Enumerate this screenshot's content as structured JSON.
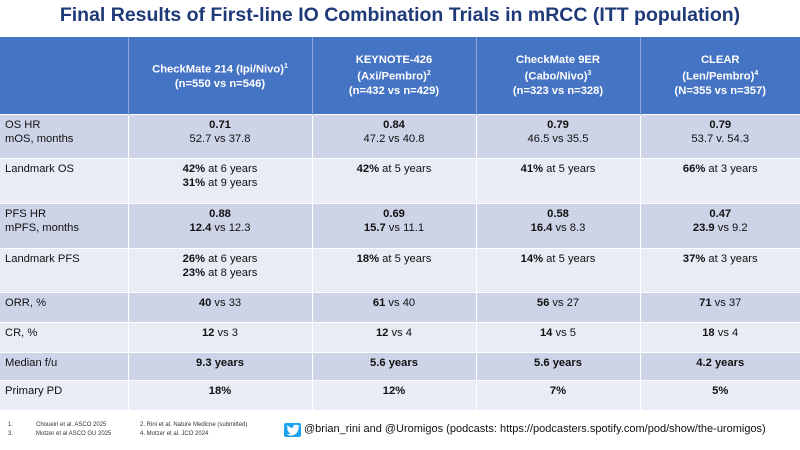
{
  "title": "Final Results of First-line IO Combination Trials in mRCC (ITT population)",
  "columns": [
    {
      "name": "CheckMate 214 (Ipi/Nivo)",
      "sup": "1",
      "n": "(n=550 vs n=546)"
    },
    {
      "name": "KEYNOTE-426",
      "name2": "(Axi/Pembro)",
      "sup": "2",
      "n": "(n=432 vs n=429)"
    },
    {
      "name": "CheckMate 9ER",
      "name2": "(Cabo/Nivo)",
      "sup": "3",
      "n": "(n=323 vs n=328)"
    },
    {
      "name": "CLEAR",
      "name2": "(Len/Pembro)",
      "sup": "4",
      "n": "(N=355 vs n=357)"
    }
  ],
  "rows": {
    "os": {
      "label1": "OS HR",
      "label2": "mOS, months",
      "cells": [
        {
          "hr": "0.71",
          "m": "52.7 vs 37.8"
        },
        {
          "hr": "0.84",
          "m": "47.2 vs 40.8"
        },
        {
          "hr": "0.79",
          "m": "46.5 vs 35.5"
        },
        {
          "hr": "0.79",
          "m": "53.7 v. 54.3"
        }
      ]
    },
    "landmark_os": {
      "label": "Landmark OS",
      "cells": [
        {
          "b1": "42%",
          "t1": " at 6 years",
          "b2": "31%",
          "t2": " at 9 years"
        },
        {
          "b1": "42%",
          "t1": " at 5 years"
        },
        {
          "b1": "41%",
          "t1": " at 5 years"
        },
        {
          "b1": "66%",
          "t1": " at 3 years"
        }
      ]
    },
    "pfs": {
      "label1": "PFS HR",
      "label2": "mPFS, months",
      "cells": [
        {
          "hr": "0.88",
          "mb": "12.4",
          "mt": " vs 12.3"
        },
        {
          "hr": "0.69",
          "mb": "15.7",
          "mt": " vs 11.1"
        },
        {
          "hr": "0.58",
          "mb": "16.4",
          "mt": " vs 8.3"
        },
        {
          "hr": "0.47",
          "mb": "23.9",
          "mt": " vs 9.2"
        }
      ]
    },
    "landmark_pfs": {
      "label": "Landmark PFS",
      "cells": [
        {
          "b1": "26%",
          "t1": " at 6 years",
          "b2": "23%",
          "t2": " at 8 years"
        },
        {
          "b1": "18%",
          "t1": " at 5 years"
        },
        {
          "b1": "14%",
          "t1": " at 5 years"
        },
        {
          "b1": "37%",
          "t1": " at 3 years"
        }
      ]
    },
    "orr": {
      "label": "ORR, %",
      "cells": [
        {
          "b": "40",
          "t": " vs 33"
        },
        {
          "b": "61",
          "t": " vs 40"
        },
        {
          "b": "56",
          "t": " vs 27"
        },
        {
          "b": "71",
          "t": " vs 37"
        }
      ]
    },
    "cr": {
      "label": "CR, %",
      "cells": [
        {
          "b": "12",
          "t": " vs 3"
        },
        {
          "b": "12",
          "t": " vs 4"
        },
        {
          "b": "14",
          "t": " vs 5"
        },
        {
          "b": "18",
          "t": " vs 4"
        }
      ]
    },
    "fu": {
      "label": "Median f/u",
      "cells": [
        "9.3 years",
        "5.6 years",
        "5.6 years",
        "4.2 years"
      ]
    },
    "pd": {
      "label": "Primary PD",
      "cells": [
        "18%",
        "12%",
        "7%",
        "5%"
      ]
    }
  },
  "footnotes": {
    "n1": "1.",
    "r1": "Choueiri et al. ASCO 2025",
    "n3": "3.",
    "r3": "Motzer et al ASCO GU 2025",
    "n2": "2. Rini et al. Nature Medicne (submitted)",
    "n4": "4. Motzer et al. JCO 2024"
  },
  "social": {
    "icon": "twitter-icon",
    "text": "@brian_rini and @Uromigos (podcasts: https://podcasters.spotify.com/pod/show/the-uromigos)",
    "colors": {
      "twitter": "#1da1f2"
    }
  },
  "colors": {
    "title": "#1f3a78",
    "header_bg": "#4674c4",
    "band": "#cdd4e8",
    "plain": "#e9ecf5"
  }
}
